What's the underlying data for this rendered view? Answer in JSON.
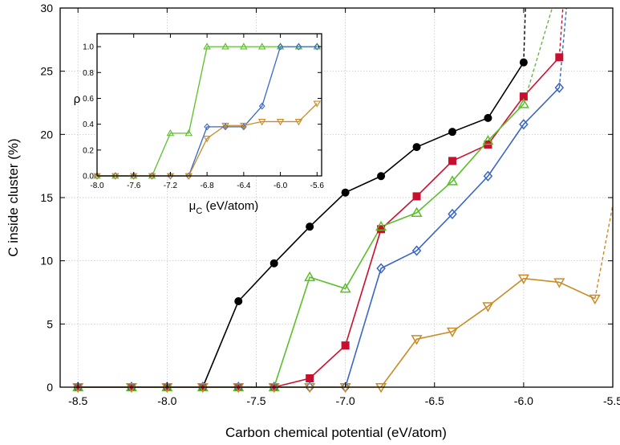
{
  "chart_data": [
    {
      "type": "line",
      "xlabel": "Carbon chemical potential (eV/atom)",
      "ylabel": "C inside cluster (%)",
      "xlim": [
        -8.6,
        -5.5
      ],
      "ylim": [
        0,
        30
      ],
      "x_ticks": [
        -8.5,
        -8.0,
        -7.5,
        -7.0,
        -6.5,
        -6.0,
        -5.5
      ],
      "x_tick_labels": [
        "-8.5",
        "-8.0",
        "-7.5",
        "-7.0",
        "-6.5",
        "-6.0",
        "-5.5"
      ],
      "y_ticks": [
        0,
        5,
        10,
        15,
        20,
        25,
        30
      ],
      "y_tick_labels": [
        "0",
        "5",
        "10",
        "15",
        "20",
        "25",
        "30"
      ],
      "grid": true,
      "series": [
        {
          "name": "black circles",
          "color": "#000000",
          "marker": "circle-filled",
          "x": [
            -8.5,
            -8.2,
            -8.0,
            -7.8,
            -7.6,
            -7.4,
            -7.2,
            -7.0,
            -6.8,
            -6.6,
            -6.4,
            -6.2,
            -6.0
          ],
          "y": [
            0,
            0,
            0,
            0,
            6.8,
            9.8,
            12.7,
            15.4,
            16.7,
            19.0,
            20.2,
            21.3,
            25.7
          ],
          "extrapolation": [
            [
              -6.0,
              25.7
            ],
            [
              -5.99,
              30
            ]
          ]
        },
        {
          "name": "red squares",
          "color": "#c8102e",
          "marker": "square-filled",
          "x": [
            -8.5,
            -8.2,
            -8.0,
            -7.8,
            -7.6,
            -7.4,
            -7.2,
            -7.0,
            -6.8,
            -6.6,
            -6.4,
            -6.2,
            -6.0,
            -5.8
          ],
          "y": [
            0,
            0,
            0,
            0,
            0,
            0,
            0.7,
            3.3,
            12.5,
            15.1,
            17.9,
            19.2,
            23.0,
            26.1
          ],
          "extrapolation": [
            [
              -5.8,
              26.1
            ],
            [
              -5.78,
              30
            ]
          ]
        },
        {
          "name": "green triangles",
          "color": "#5bbf2a",
          "marker": "triangle-up-open",
          "x": [
            -8.5,
            -8.2,
            -8.0,
            -7.8,
            -7.6,
            -7.4,
            -7.2,
            -7.0,
            -6.8,
            -6.6,
            -6.4,
            -6.2,
            -6.0
          ],
          "y": [
            0,
            0,
            0,
            0,
            0,
            0,
            8.7,
            7.8,
            12.7,
            13.8,
            16.3,
            19.5,
            22.4
          ],
          "extrapolation": [
            [
              -6.0,
              22.4
            ],
            [
              -5.84,
              30
            ]
          ]
        },
        {
          "name": "blue diamonds",
          "color": "#3a66c4",
          "marker": "diamond-open",
          "x": [
            -8.5,
            -8.2,
            -8.0,
            -7.8,
            -7.6,
            -7.4,
            -7.2,
            -7.0,
            -6.8,
            -6.6,
            -6.4,
            -6.2,
            -6.0,
            -5.8
          ],
          "y": [
            0,
            0,
            0,
            0,
            0,
            0,
            0,
            0,
            9.4,
            10.8,
            13.7,
            16.7,
            20.8,
            23.7
          ],
          "extrapolation": [
            [
              -5.8,
              23.7
            ],
            [
              -5.76,
              30
            ]
          ]
        },
        {
          "name": "orange triangles",
          "color": "#c98b26",
          "marker": "triangle-down-open",
          "x": [
            -8.5,
            -8.2,
            -8.0,
            -7.8,
            -7.6,
            -7.4,
            -7.2,
            -7.0,
            -6.8,
            -6.6,
            -6.4,
            -6.2,
            -6.0,
            -5.8,
            -5.6
          ],
          "y": [
            0,
            0,
            0,
            0,
            0,
            0,
            0,
            0,
            0,
            3.8,
            4.4,
            6.4,
            8.6,
            8.3,
            7.0
          ],
          "extrapolation": [
            [
              -5.6,
              7.0
            ],
            [
              -5.5,
              14.4
            ]
          ]
        }
      ]
    },
    {
      "type": "line",
      "title": "inset",
      "xlabel_main": "μ",
      "xlabel_sub": "C",
      "xlabel_rest": " (eV/atom)",
      "ylabel": "ρ",
      "xlim": [
        -8.0,
        -5.55
      ],
      "ylim": [
        0,
        1.1
      ],
      "x_ticks": [
        -8.0,
        -7.6,
        -7.2,
        -6.8,
        -6.4,
        -6.0,
        -5.6
      ],
      "x_tick_labels": [
        "-8.0",
        "-7.6",
        "-7.2",
        "-6.8",
        "-6.4",
        "-6.0",
        "-5.6"
      ],
      "y_ticks": [
        0,
        0.2,
        0.4,
        0.6,
        0.8,
        1.0
      ],
      "y_tick_labels": [
        "0.0",
        "0.2",
        "0.4",
        "0.6",
        "0.8",
        "1.0"
      ],
      "grid": false,
      "series": [
        {
          "name": "green triangles",
          "color": "#5bbf2a",
          "marker": "triangle-up-open",
          "x": [
            -8.0,
            -7.8,
            -7.6,
            -7.4,
            -7.2,
            -7.0,
            -6.8,
            -6.6,
            -6.4,
            -6.2,
            -6.0,
            -5.8,
            -5.6
          ],
          "y": [
            0,
            0,
            0,
            0,
            0.33,
            0.33,
            1.0,
            1.0,
            1.0,
            1.0,
            1.0,
            1.0,
            1.0
          ]
        },
        {
          "name": "blue diamonds",
          "color": "#3a66c4",
          "marker": "diamond-open",
          "x": [
            -8.0,
            -7.8,
            -7.6,
            -7.4,
            -7.2,
            -7.0,
            -6.8,
            -6.6,
            -6.4,
            -6.2,
            -6.0,
            -5.8,
            -5.6
          ],
          "y": [
            0,
            0,
            0,
            0,
            0,
            0,
            0.38,
            0.38,
            0.38,
            0.54,
            1.0,
            1.0,
            1.0
          ]
        },
        {
          "name": "orange triangles",
          "color": "#c98b26",
          "marker": "triangle-down-open",
          "x": [
            -8.0,
            -7.8,
            -7.6,
            -7.4,
            -7.2,
            -7.0,
            -6.8,
            -6.6,
            -6.4,
            -6.2,
            -6.0,
            -5.8,
            -5.6
          ],
          "y": [
            0,
            0,
            0,
            0,
            0,
            0,
            0.29,
            0.39,
            0.39,
            0.42,
            0.42,
            0.42,
            0.56
          ]
        }
      ]
    }
  ]
}
